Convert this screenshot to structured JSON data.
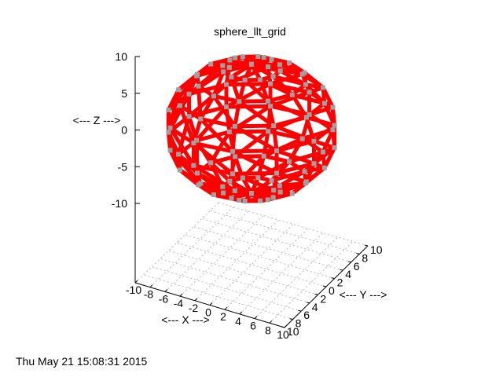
{
  "chart_data": {
    "type": "scatter",
    "title": "sphere_llt_grid",
    "xlabel": "<--- X --->",
    "ylabel": "<--- Y --->",
    "zlabel": "<--- Z --->",
    "xlim": [
      -10,
      10
    ],
    "ylim": [
      -10,
      10
    ],
    "zlim": [
      -10,
      10
    ],
    "x_ticks": [
      "-10",
      "-8",
      "-6",
      "-4",
      "-2",
      "0",
      "2",
      "4",
      "6",
      "8",
      "10"
    ],
    "y_ticks": [
      "10",
      "8",
      "6",
      "4",
      "2",
      "0",
      "2",
      "4",
      "6",
      "8",
      "10"
    ],
    "z_ticks": [
      "10",
      "5",
      "0",
      "-5",
      "-10"
    ],
    "grid": true,
    "sphere": {
      "center": [
        0,
        0,
        0
      ],
      "radius": 10,
      "latitudes": 9,
      "longitudes": 12
    },
    "colors": {
      "edges": "#ff0000",
      "nodes": "#a0a0a0"
    }
  },
  "footer": {
    "timestamp": "Thu May 21 15:08:31 2015"
  }
}
